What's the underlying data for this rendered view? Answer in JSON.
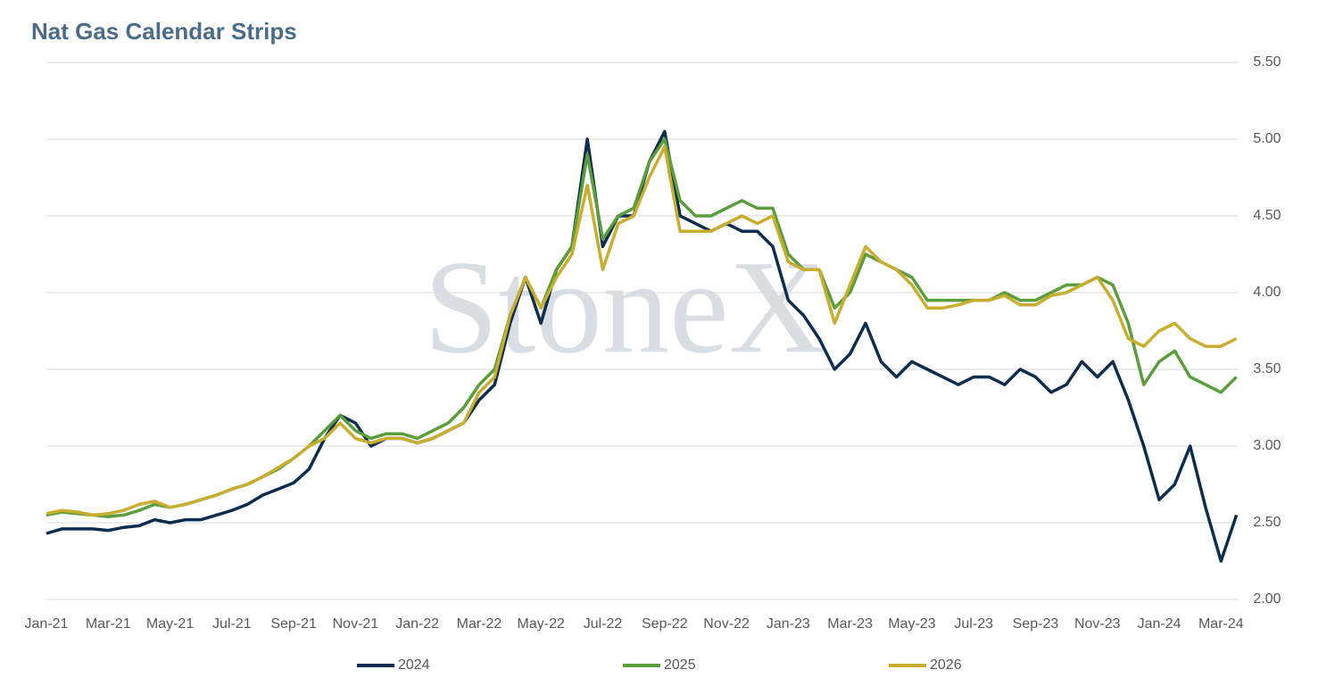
{
  "chart_data": {
    "type": "line",
    "title": "Nat Gas Calendar Strips",
    "watermark": "StoneX",
    "categories": [
      "Jan-21",
      null,
      null,
      null,
      "Mar-21",
      null,
      null,
      null,
      "May-21",
      null,
      null,
      null,
      "Jul-21",
      null,
      null,
      null,
      "Sep-21",
      null,
      null,
      null,
      "Nov-21",
      null,
      null,
      null,
      "Jan-22",
      null,
      null,
      null,
      "Mar-22",
      null,
      null,
      null,
      "May-22",
      null,
      null,
      null,
      "Jul-22",
      null,
      null,
      null,
      "Sep-22",
      null,
      null,
      null,
      "Nov-22",
      null,
      null,
      null,
      "Jan-23",
      null,
      null,
      null,
      "Mar-23",
      null,
      null,
      null,
      "May-23",
      null,
      null,
      null,
      "Jul-23",
      null,
      null,
      null,
      "Sep-23",
      null,
      null,
      null,
      "Nov-23",
      null,
      null,
      null,
      "Jan-24",
      null,
      null,
      null,
      "Mar-24",
      null
    ],
    "series": [
      {
        "name": "2024",
        "color": "#0d2d4f",
        "values": [
          2.43,
          2.46,
          2.46,
          2.46,
          2.45,
          2.47,
          2.48,
          2.52,
          2.5,
          2.52,
          2.52,
          2.55,
          2.58,
          2.62,
          2.68,
          2.72,
          2.76,
          2.85,
          3.05,
          3.2,
          3.15,
          3.0,
          3.05,
          3.05,
          3.02,
          3.05,
          3.1,
          3.15,
          3.3,
          3.4,
          3.8,
          4.1,
          3.8,
          4.15,
          4.3,
          5.0,
          4.3,
          4.5,
          4.5,
          4.85,
          5.05,
          4.5,
          4.45,
          4.4,
          4.45,
          4.4,
          4.4,
          4.3,
          3.95,
          3.85,
          3.7,
          3.5,
          3.6,
          3.8,
          3.55,
          3.45,
          3.55,
          3.5,
          3.45,
          3.4,
          3.45,
          3.45,
          3.4,
          3.5,
          3.45,
          3.35,
          3.4,
          3.55,
          3.45,
          3.55,
          3.3,
          3.0,
          2.65,
          2.75,
          3.0,
          2.6,
          2.25,
          2.55
        ]
      },
      {
        "name": "2025",
        "color": "#5a9e3c",
        "values": [
          2.55,
          2.57,
          2.56,
          2.55,
          2.54,
          2.55,
          2.58,
          2.62,
          2.6,
          2.62,
          2.65,
          2.68,
          2.72,
          2.75,
          2.8,
          2.85,
          2.92,
          3.0,
          3.1,
          3.2,
          3.1,
          3.05,
          3.08,
          3.08,
          3.05,
          3.1,
          3.15,
          3.25,
          3.4,
          3.5,
          3.85,
          4.1,
          3.9,
          4.15,
          4.3,
          4.9,
          4.35,
          4.5,
          4.55,
          4.85,
          5.0,
          4.6,
          4.5,
          4.5,
          4.55,
          4.6,
          4.55,
          4.55,
          4.25,
          4.15,
          4.15,
          3.9,
          4.0,
          4.25,
          4.2,
          4.15,
          4.1,
          3.95,
          3.95,
          3.95,
          3.95,
          3.95,
          4.0,
          3.95,
          3.95,
          4.0,
          4.05,
          4.05,
          4.1,
          4.05,
          3.8,
          3.4,
          3.55,
          3.62,
          3.45,
          3.4,
          3.35,
          3.45
        ]
      },
      {
        "name": "2026",
        "color": "#c8ad2e",
        "values": [
          2.56,
          2.58,
          2.57,
          2.55,
          2.56,
          2.58,
          2.62,
          2.64,
          2.6,
          2.62,
          2.65,
          2.68,
          2.72,
          2.75,
          2.8,
          2.86,
          2.92,
          3.0,
          3.05,
          3.15,
          3.05,
          3.02,
          3.05,
          3.05,
          3.02,
          3.05,
          3.1,
          3.15,
          3.35,
          3.45,
          3.85,
          4.1,
          3.9,
          4.1,
          4.25,
          4.7,
          4.15,
          4.45,
          4.5,
          4.75,
          4.95,
          4.4,
          4.4,
          4.4,
          4.45,
          4.5,
          4.45,
          4.5,
          4.2,
          4.15,
          4.15,
          3.8,
          4.05,
          4.3,
          4.2,
          4.15,
          4.05,
          3.9,
          3.9,
          3.92,
          3.95,
          3.95,
          3.98,
          3.92,
          3.92,
          3.98,
          4.0,
          4.05,
          4.1,
          3.95,
          3.7,
          3.65,
          3.75,
          3.8,
          3.7,
          3.65,
          3.65,
          3.7
        ]
      }
    ],
    "ylim": [
      2,
      5.5
    ],
    "yticks": [
      {
        "value": 2,
        "label": "2.00"
      },
      {
        "value": 2.5,
        "label": "2.50"
      },
      {
        "value": 3,
        "label": "3.00"
      },
      {
        "value": 3.5,
        "label": "3.50"
      },
      {
        "value": 4,
        "label": "4.00"
      },
      {
        "value": 4.5,
        "label": "4.50"
      },
      {
        "value": 5,
        "label": "5.00"
      },
      {
        "value": 5.5,
        "label": "5.50"
      }
    ],
    "grid": true,
    "legend": "bottom"
  }
}
